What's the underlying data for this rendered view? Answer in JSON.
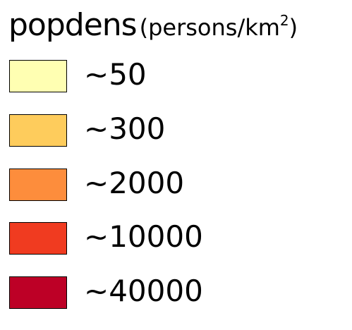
{
  "legend": {
    "title": "popdens",
    "unit_prefix": "(persons/km",
    "unit_superscript": "2",
    "unit_suffix": ")",
    "items": [
      {
        "label": "~50",
        "color": "#ffffb2"
      },
      {
        "label": "~300",
        "color": "#fecc5c"
      },
      {
        "label": "~2000",
        "color": "#fd8d3c"
      },
      {
        "label": "~10000",
        "color": "#f03b20"
      },
      {
        "label": "~40000",
        "color": "#bd0026"
      }
    ]
  }
}
